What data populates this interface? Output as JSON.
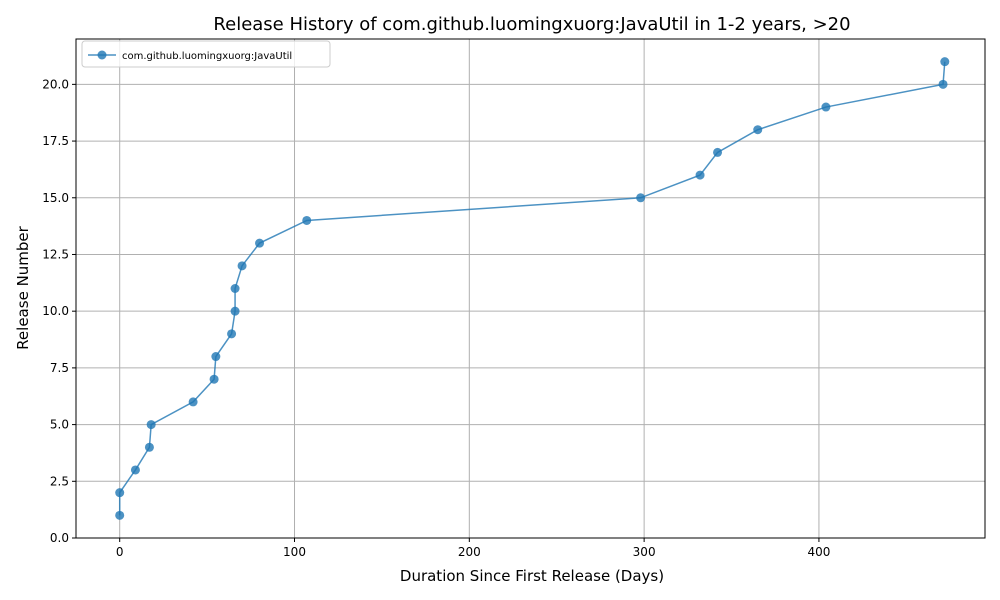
{
  "chart_data": {
    "type": "line",
    "title": "Release History of com.github.luomingxuorg:JavaUtil in 1-2 years, >20",
    "xlabel": "Duration Since First Release (Days)",
    "ylabel": "Release Number",
    "xlim": [
      -25,
      495
    ],
    "ylim": [
      0,
      22
    ],
    "xticks": [
      0,
      100,
      200,
      300,
      400
    ],
    "xtick_labels": [
      "0",
      "100",
      "200",
      "300",
      "400"
    ],
    "yticks": [
      0,
      2.5,
      5,
      7.5,
      10,
      12.5,
      15,
      17.5,
      20
    ],
    "ytick_labels": [
      "0.0",
      "2.5",
      "5.0",
      "7.5",
      "10.0",
      "12.5",
      "15.0",
      "17.5",
      "20.0"
    ],
    "grid": true,
    "legend_position": "top-left",
    "series": [
      {
        "name": "com.github.luomingxuorg:JavaUtil",
        "color": "#1f77b4",
        "marker": "circle",
        "x": [
          0,
          0,
          9,
          17,
          18,
          42,
          54,
          55,
          64,
          66,
          66,
          70,
          80,
          107,
          298,
          332,
          342,
          365,
          404,
          471,
          472
        ],
        "y": [
          1,
          2,
          3,
          4,
          5,
          6,
          7,
          8,
          9,
          10,
          11,
          12,
          13,
          14,
          15,
          16,
          17,
          18,
          19,
          20,
          21
        ]
      }
    ]
  }
}
